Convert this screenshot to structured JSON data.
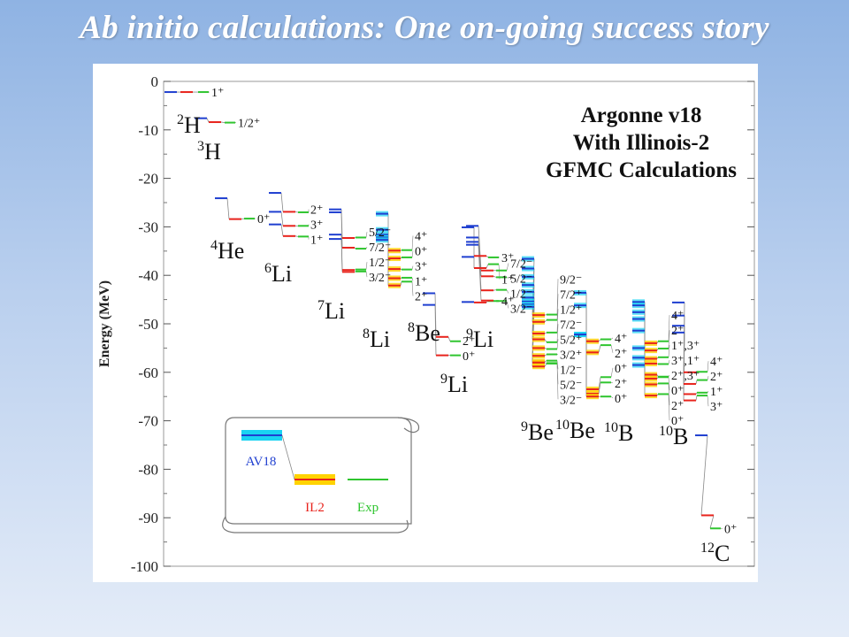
{
  "slide_title": "Ab initio calculations:  One on-going success story",
  "colors": {
    "av18": "#1f3fd0",
    "il2": "#e8231c",
    "exp": "#2fc52f",
    "av18_band": "#19d3f2",
    "il2_band": "#ffd300",
    "connector": "#888888"
  },
  "chart_data": {
    "type": "level-scheme",
    "title_lines": [
      "Argonne v18",
      "With Illinois-2",
      "GFMC Calculations"
    ],
    "ylabel": "Energy (MeV)",
    "ylim": [
      -100,
      0
    ],
    "yticks": [
      "0",
      "-10",
      "-20",
      "-30",
      "-40",
      "-50",
      "-60",
      "-70",
      "-80",
      "-90",
      "-100"
    ],
    "legend": {
      "av18": "AV18",
      "il2": "IL2",
      "exp": "Exp"
    },
    "nuclei": [
      {
        "mass": "2",
        "symbol": "H",
        "levels": [
          {
            "jpi": "1⁺",
            "av18": -2.2,
            "il2": -2.2,
            "exp": -2.2
          }
        ]
      },
      {
        "mass": "3",
        "symbol": "H",
        "levels": [
          {
            "jpi": "1/2⁺",
            "av18": -7.6,
            "il2": -8.4,
            "exp": -8.5
          }
        ]
      },
      {
        "mass": "4",
        "symbol": "He",
        "levels": [
          {
            "jpi": "0⁺",
            "av18": -24.1,
            "il2": -28.4,
            "exp": -28.3
          }
        ]
      },
      {
        "mass": "6",
        "symbol": "Li",
        "levels": [
          {
            "jpi": "2⁺",
            "av18": -23.0,
            "il2": -26.9,
            "exp": -27.0
          },
          {
            "jpi": "3⁺",
            "av18": -26.9,
            "il2": -29.8,
            "exp": -29.8
          },
          {
            "jpi": "1⁺",
            "av18": -29.5,
            "il2": -31.9,
            "exp": -32.0
          }
        ]
      },
      {
        "mass": "7",
        "symbol": "Li",
        "levels": [
          {
            "jpi": "5/2⁻",
            "av18": -26.4,
            "il2": -32.3,
            "exp": -32.2
          },
          {
            "jpi": "7/2⁻",
            "av18": -27.0,
            "il2": -34.3,
            "exp": -34.5
          },
          {
            "jpi": "1/2⁻",
            "av18": -31.6,
            "il2": -38.9,
            "exp": -38.8
          },
          {
            "jpi": "3/2⁻",
            "av18": -32.5,
            "il2": -39.3,
            "exp": -39.2
          }
        ]
      },
      {
        "mass": "8",
        "symbol": "Li",
        "levels": [
          {
            "jpi": "4⁺",
            "av18": -27.3,
            "il2": -34.9,
            "exp": -34.8
          },
          {
            "jpi": "0⁺",
            "av18": -30.6,
            "il2": -36.5,
            "exp": -36.3
          },
          {
            "jpi": "3⁺",
            "av18": -31.6,
            "il2": -38.7,
            "exp": -38.8
          },
          {
            "jpi": "1⁺",
            "av18": -32.2,
            "il2": -40.6,
            "exp": -40.5
          },
          {
            "jpi": "2⁺",
            "av18": -32.7,
            "il2": -42.1,
            "exp": -41.3
          }
        ]
      },
      {
        "mass": "8",
        "symbol": "Be",
        "levels": [
          {
            "jpi": "2⁺",
            "av18": -43.7,
            "il2": -52.7,
            "exp": -53.6
          },
          {
            "jpi": "0⁺",
            "av18": -46.1,
            "il2": -56.5,
            "exp": -56.5
          }
        ]
      },
      {
        "mass": "9",
        "symbol": "Li",
        "levels": [
          {
            "jpi": "3⁺",
            "av18": -30.1,
            "il2": -36.0,
            "exp": -36.3
          },
          {
            "jpi": "1⁺",
            "av18": -36.2,
            "il2": -38.5,
            "exp": -37.7
          },
          {
            "jpi": "4⁺",
            "av18": -45.5,
            "il2": -45.6,
            "exp": -45.3
          }
        ]
      },
      {
        "mass": "9",
        "symbol": "Li",
        "levels": [
          {
            "jpi": "7/2⁻",
            "av18": -29.8,
            "il2": -39.0,
            "exp": -39.0
          },
          {
            "jpi": "5/2⁻",
            "av18": -32.2,
            "il2": -40.2,
            "exp": -40.4
          },
          {
            "jpi": "1/2⁻",
            "av18": -33.1,
            "il2": -43.1,
            "exp": -43.0
          },
          {
            "jpi": "3/2⁻",
            "av18": -33.7,
            "il2": -45.2,
            "exp": -45.3
          }
        ]
      },
      {
        "mass": "9",
        "symbol": "Be",
        "levels": [
          {
            "jpi": "9/2⁻",
            "av18": -36.6,
            "il2": -48.2,
            "exp": -48.1
          },
          {
            "jpi": "7/2⁺",
            "av18": -38.6,
            "il2": -49.6,
            "exp": -49.2
          },
          {
            "jpi": "1/2⁺",
            "av18": -40.3,
            "il2": -52.0,
            "exp": -51.8
          },
          {
            "jpi": "7/2⁻",
            "av18": -42.0,
            "il2": -53.2,
            "exp": -53.8
          },
          {
            "jpi": "5/2⁺",
            "av18": -43.4,
            "il2": -55.0,
            "exp": -55.2
          },
          {
            "jpi": "3/2⁺",
            "av18": -44.6,
            "il2": -56.6,
            "exp": -56.3
          },
          {
            "jpi": "1/2⁻",
            "av18": -45.4,
            "il2": -57.8,
            "exp": -57.6
          },
          {
            "jpi": "5/2⁻",
            "av18": -46.0,
            "il2": -58.0,
            "exp": -58.1
          },
          {
            "jpi": "3/2⁻",
            "av18": -46.5,
            "il2": -58.8,
            "exp": -58.2
          }
        ]
      },
      {
        "mass": "10",
        "symbol": "Be",
        "levels": [
          {
            "jpi": "4⁺",
            "av18": -43.6,
            "il2": -53.6,
            "exp": -53.2
          },
          {
            "jpi": "2⁺",
            "av18": -46.2,
            "il2": -55.9,
            "exp": -54.4
          },
          {
            "jpi": "0⁺",
            "av18": -52.2,
            "il2": -63.5,
            "exp": -61.0
          },
          {
            "jpi": "2⁺",
            "av18": -52.2,
            "il2": -64.4,
            "exp": -62.1
          },
          {
            "jpi": "0⁺",
            "av18": -52.2,
            "il2": -65.0,
            "exp": -65.0
          }
        ]
      },
      {
        "mass": "10",
        "symbol": "B",
        "levels": [
          {
            "jpi": "4⁺",
            "av18": -45.5,
            "il2": -54.0,
            "exp": -53.6
          },
          {
            "jpi": "2⁺",
            "av18": -46.2,
            "il2": -55.5,
            "exp": -55.1
          },
          {
            "jpi": "1⁺,3⁺",
            "av18": -47.6,
            "il2": -57.2,
            "exp": -56.9
          },
          {
            "jpi": "3⁺,1⁺",
            "av18": -49.0,
            "il2": -58.2,
            "exp": -58.3
          },
          {
            "jpi": "2⁺,3⁺",
            "av18": -51.4,
            "il2": -60.5,
            "exp": -60.9
          },
          {
            "jpi": "0⁺",
            "av18": -55.0,
            "il2": -61.3,
            "exp": -61.0
          },
          {
            "jpi": "2⁺",
            "av18": -57.0,
            "il2": -62.5,
            "exp": -62.3
          },
          {
            "jpi": "0⁺",
            "av18": -58.5,
            "il2": -64.8,
            "exp": -64.5
          }
        ]
      },
      {
        "mass": "10",
        "symbol": "B",
        "levels": [
          {
            "jpi": "4⁺",
            "av18": -45.6,
            "il2": -60.0,
            "exp": -59.9
          },
          {
            "jpi": "2⁺",
            "av18": -48.3,
            "il2": -62.4,
            "exp": -61.6
          },
          {
            "jpi": "1⁺",
            "av18": -50.4,
            "il2": -64.5,
            "exp": -64.2
          },
          {
            "jpi": "3⁺",
            "av18": -51.8,
            "il2": -65.8,
            "exp": -64.8
          }
        ]
      },
      {
        "mass": "12",
        "symbol": "C",
        "levels": [
          {
            "jpi": "0⁺",
            "av18": -73.0,
            "il2": -89.5,
            "exp": -92.2
          }
        ]
      }
    ]
  }
}
